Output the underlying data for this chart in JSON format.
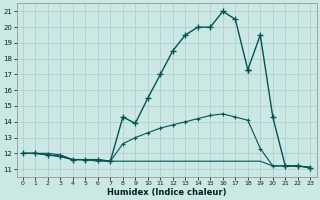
{
  "xlabel": "Humidex (Indice chaleur)",
  "bg_color": "#cce8e4",
  "grid_color": "#aacccc",
  "line_color": "#005555",
  "xlim": [
    -0.5,
    23.5
  ],
  "ylim": [
    10.5,
    21.5
  ],
  "xticks": [
    0,
    1,
    2,
    3,
    4,
    5,
    6,
    7,
    8,
    9,
    10,
    11,
    12,
    13,
    14,
    15,
    16,
    17,
    18,
    19,
    20,
    21,
    22,
    23
  ],
  "yticks": [
    11,
    12,
    13,
    14,
    15,
    16,
    17,
    18,
    19,
    20,
    21
  ],
  "curve1_x": [
    0,
    1,
    2,
    3,
    4,
    5,
    6,
    7,
    8,
    9,
    10,
    11,
    12,
    13,
    14,
    15,
    16,
    17,
    18,
    19,
    20,
    21,
    22,
    23
  ],
  "curve1_y": [
    12.0,
    12.0,
    11.9,
    11.8,
    11.6,
    11.6,
    11.6,
    11.5,
    14.3,
    13.9,
    15.5,
    17.0,
    18.5,
    19.5,
    20.0,
    20.0,
    21.0,
    20.5,
    17.3,
    null,
    null,
    null,
    null,
    null
  ],
  "curve2_x": [
    0,
    1,
    2,
    3,
    4,
    5,
    6,
    7,
    8,
    9,
    10,
    11,
    12,
    13,
    14,
    15,
    16,
    17,
    18,
    19,
    20,
    21,
    22,
    23
  ],
  "curve2_y": [
    12.0,
    12.0,
    11.9,
    11.8,
    11.6,
    11.6,
    11.6,
    11.5,
    12.6,
    13.0,
    13.3,
    13.6,
    13.8,
    14.0,
    14.2,
    14.4,
    14.5,
    14.3,
    14.1,
    12.3,
    11.2,
    11.2,
    11.2,
    11.1
  ],
  "curve3_x": [
    0,
    1,
    2,
    3,
    4,
    5,
    6,
    7,
    8,
    9,
    10,
    11,
    12,
    13,
    14,
    15,
    16,
    17,
    18,
    19,
    20,
    21,
    22,
    23
  ],
  "curve3_y": [
    12.0,
    12.0,
    12.0,
    11.9,
    11.6,
    11.6,
    11.5,
    11.5,
    11.5,
    11.5,
    11.5,
    11.5,
    11.5,
    11.5,
    11.5,
    11.5,
    11.5,
    11.5,
    11.5,
    11.5,
    11.2,
    11.2,
    11.2,
    11.1
  ],
  "curve1_seg2_x": [
    18,
    19,
    20,
    21,
    22,
    23
  ],
  "curve1_seg2_y": [
    17.3,
    19.5,
    14.3,
    11.2,
    11.2,
    11.1
  ]
}
